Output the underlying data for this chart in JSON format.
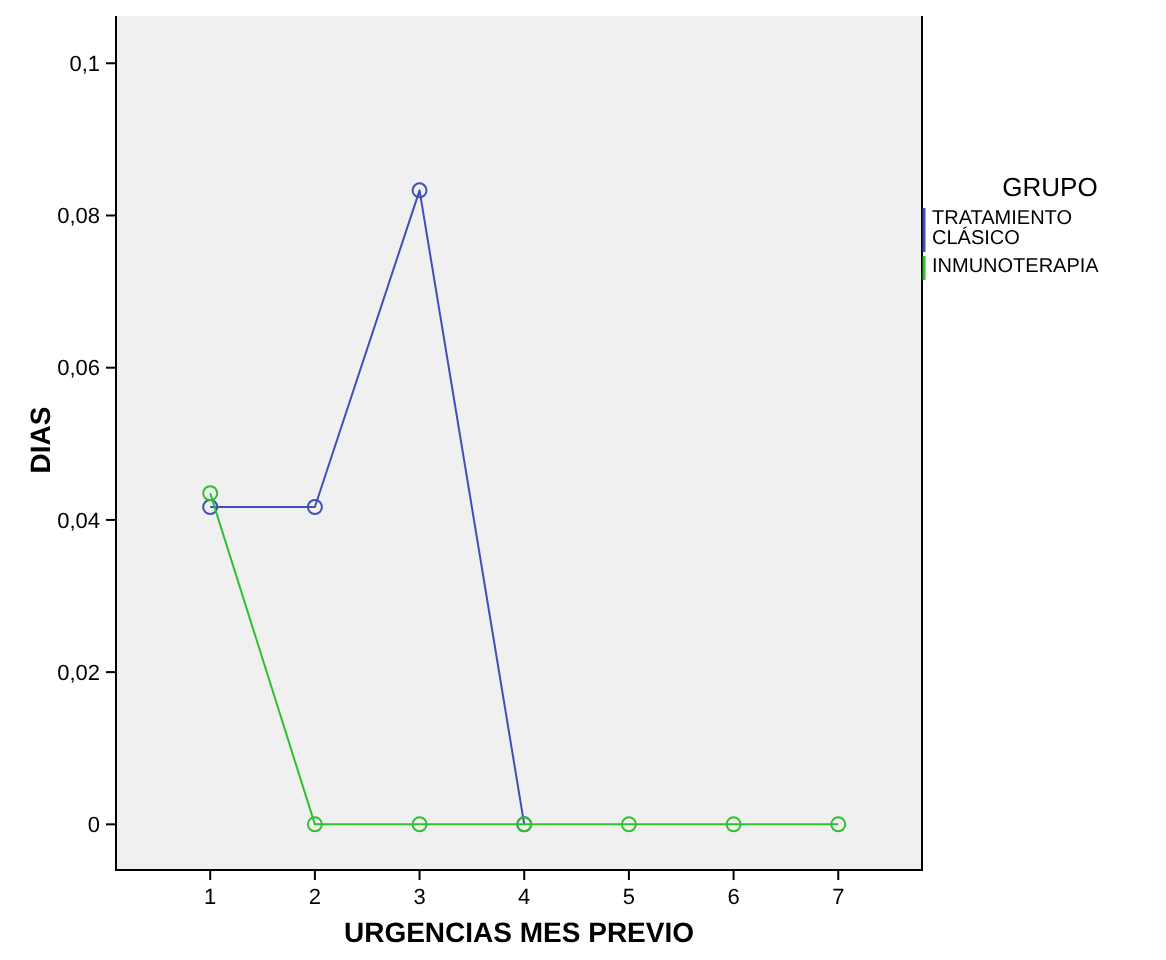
{
  "chart_data": {
    "type": "line",
    "xlabel": "URGENCIAS MES PREVIO",
    "ylabel": "DIAS",
    "legend_title": "GRUPO",
    "x": [
      1,
      2,
      3,
      4,
      5,
      6,
      7
    ],
    "xlim": [
      0.1,
      7.8
    ],
    "xticks": [
      1,
      2,
      3,
      4,
      5,
      6,
      7
    ],
    "ylim": [
      -0.006,
      0.107
    ],
    "yticks": [
      {
        "value": 0,
        "label": "0"
      },
      {
        "value": 0.02,
        "label": "0,02"
      },
      {
        "value": 0.04,
        "label": "0,04"
      },
      {
        "value": 0.06,
        "label": "0,06"
      },
      {
        "value": 0.08,
        "label": "0,08"
      },
      {
        "value": 0.1,
        "label": "0,1"
      }
    ],
    "marker": "circle",
    "legend": "right",
    "grid": false,
    "series": [
      {
        "name": "TRATAMIENTO CLÁSICO",
        "color": "#3f4fb5",
        "values": [
          0.0417,
          0.0417,
          0.0833,
          0,
          null,
          null,
          null
        ]
      },
      {
        "name": "INMUNOTERAPIA",
        "color": "#2fbf2f",
        "values": [
          0.0435,
          0,
          0,
          0,
          0,
          0,
          0
        ]
      }
    ]
  }
}
